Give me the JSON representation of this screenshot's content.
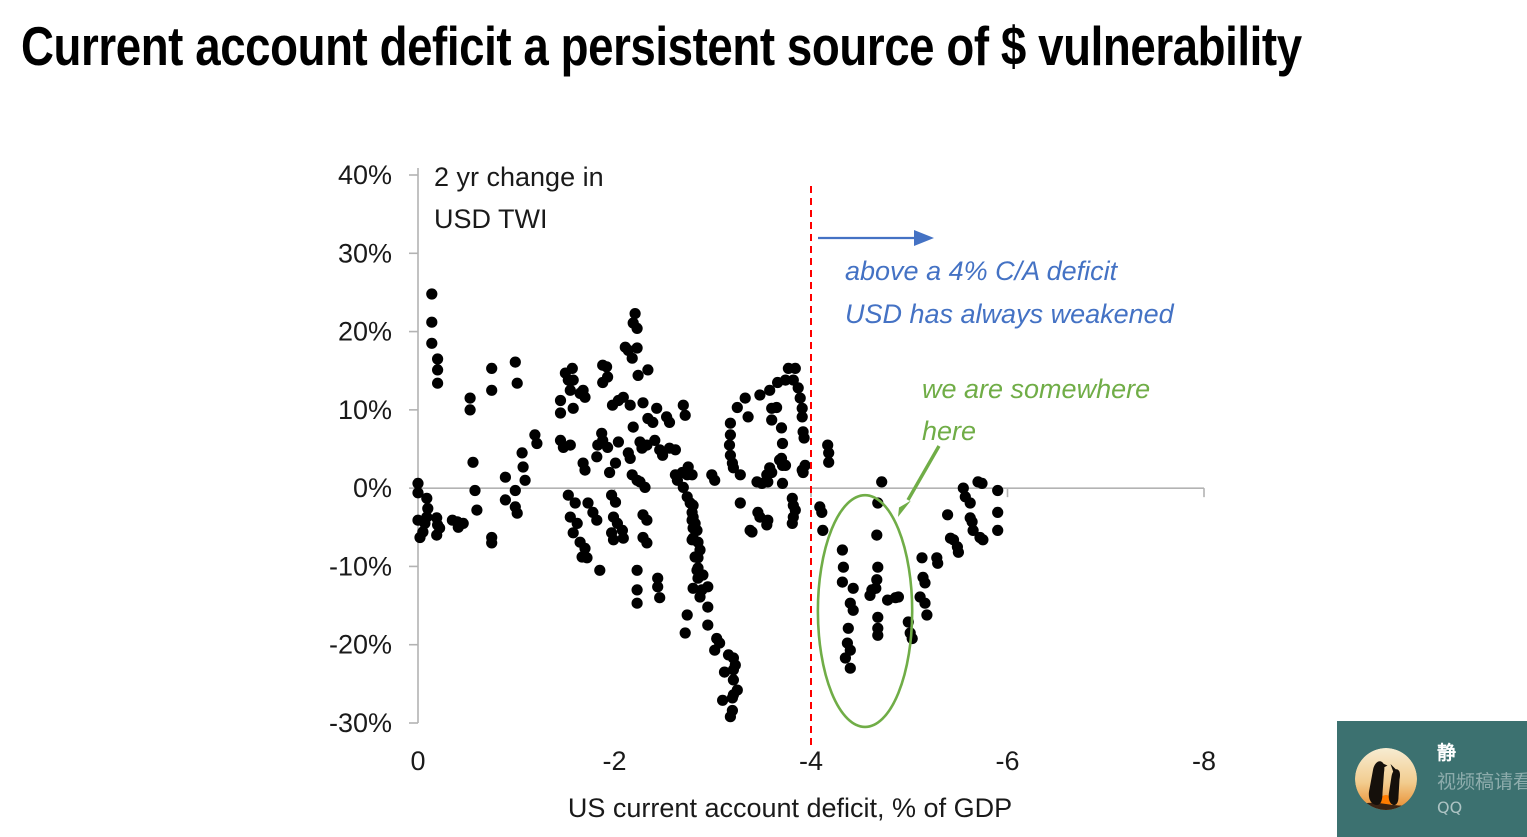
{
  "page_title": "Current account deficit a persistent source of $ vulnerability",
  "chart_data": {
    "type": "scatter",
    "xlabel": "US current account deficit, % of GDP",
    "ylabel": {
      "line1": "2 yr change in",
      "line2": "USD TWI"
    },
    "xlim": [
      0,
      -8
    ],
    "ylim": [
      -30,
      40
    ],
    "x_tick_labels": [
      "0",
      "-2",
      "-4",
      "-6",
      "-8"
    ],
    "x_tick_values": [
      0,
      -2,
      -4,
      -6,
      -8
    ],
    "y_tick_labels": [
      "40%",
      "30%",
      "20%",
      "10%",
      "0%",
      "-10%",
      "-20%",
      "-30%"
    ],
    "y_tick_values": [
      40,
      30,
      20,
      10,
      0,
      -10,
      -20,
      -30
    ],
    "grid": "zero-line-only",
    "legend": "none",
    "marker_color": "#000000",
    "axis_color": "#B3B3B3",
    "tick_label_color": "#1a1a1a",
    "reference_line": {
      "x": -4,
      "color": "#FF0000",
      "style": "dashed"
    },
    "annotations": {
      "blue": {
        "line1": "above a 4% C/A deficit",
        "line2": "USD has always weakened",
        "color": "#4472C4",
        "arrow": "right-from-reference-line"
      },
      "green": {
        "line1": "we are somewhere",
        "line2": "here",
        "color": "#70AD47",
        "arrow": "down-left-to-ellipse"
      }
    },
    "highlight_ellipse": {
      "cx": -4.55,
      "cy": -15.7,
      "rx": 0.48,
      "ry": 14.8,
      "color": "#70AD47"
    },
    "points": [
      [
        -0.14,
        24.8
      ],
      [
        -0.14,
        21.2
      ],
      [
        -0.14,
        18.5
      ],
      [
        -0.2,
        16.5
      ],
      [
        -0.2,
        15.1
      ],
      [
        -0.2,
        13.4
      ],
      [
        0,
        0.6
      ],
      [
        0,
        -0.6
      ],
      [
        -0.09,
        -1.3
      ],
      [
        -0.1,
        -2.6
      ],
      [
        -0.09,
        -3.7
      ],
      [
        -0.07,
        -4.5
      ],
      [
        0,
        -4.1
      ],
      [
        -0.05,
        -5.6
      ],
      [
        -0.02,
        -6.3
      ],
      [
        -0.19,
        -3.8
      ],
      [
        -0.2,
        -4.7
      ],
      [
        -0.22,
        -5.1
      ],
      [
        -0.19,
        -6
      ],
      [
        -0.35,
        -4.1
      ],
      [
        -0.4,
        -4.3
      ],
      [
        -0.41,
        -5
      ],
      [
        -0.46,
        -4.5
      ],
      [
        -0.53,
        11.5
      ],
      [
        -0.53,
        10
      ],
      [
        -0.56,
        3.3
      ],
      [
        -0.58,
        -0.3
      ],
      [
        -0.6,
        -2.8
      ],
      [
        -0.75,
        15.3
      ],
      [
        -0.75,
        12.5
      ],
      [
        -0.75,
        -6.3
      ],
      [
        -0.75,
        -7
      ],
      [
        -0.89,
        1.4
      ],
      [
        -0.89,
        -1.5
      ],
      [
        -0.99,
        16.1
      ],
      [
        -1.01,
        13.4
      ],
      [
        -0.99,
        -0.3
      ],
      [
        -0.99,
        -2.4
      ],
      [
        -1.01,
        -3.2
      ],
      [
        -1.06,
        4.5
      ],
      [
        -1.07,
        2.7
      ],
      [
        -1.09,
        1
      ],
      [
        -1.19,
        6.8
      ],
      [
        -1.21,
        5.7
      ],
      [
        -1.45,
        11.2
      ],
      [
        -1.45,
        9.6
      ],
      [
        -1.45,
        6.1
      ],
      [
        -1.48,
        5.2
      ],
      [
        -1.55,
        5.5
      ],
      [
        -1.68,
        3.2
      ],
      [
        -1.7,
        2.3
      ],
      [
        -1.82,
        4
      ],
      [
        -1.5,
        14.7
      ],
      [
        -1.53,
        13.8
      ],
      [
        -1.57,
        15.3
      ],
      [
        -1.58,
        13.8
      ],
      [
        -1.55,
        12.5
      ],
      [
        -1.65,
        12.1
      ],
      [
        -1.7,
        11.6
      ],
      [
        -1.58,
        10.2
      ],
      [
        -1.68,
        12.5
      ],
      [
        -1.53,
        -0.9
      ],
      [
        -1.6,
        -1.9
      ],
      [
        -1.55,
        -3.7
      ],
      [
        -1.62,
        -4.5
      ],
      [
        -1.58,
        -5.7
      ],
      [
        -1.65,
        -6.9
      ],
      [
        -1.7,
        -7.7
      ],
      [
        -1.67,
        -8.8
      ],
      [
        -1.72,
        -8.9
      ],
      [
        -1.73,
        -1.9
      ],
      [
        -1.78,
        -3.1
      ],
      [
        -1.82,
        -4.1
      ],
      [
        -1.85,
        -10.5
      ],
      [
        -1.92,
        15.5
      ],
      [
        -1.93,
        14.2
      ],
      [
        -1.88,
        13.5
      ],
      [
        -1.88,
        15.7
      ],
      [
        -2.21,
        22.3
      ],
      [
        -2.19,
        21.1
      ],
      [
        -2.23,
        20.4
      ],
      [
        -2.11,
        18
      ],
      [
        -2.14,
        17.6
      ],
      [
        -2.23,
        17.9
      ],
      [
        -2.18,
        16.6
      ],
      [
        -2.24,
        14.4
      ],
      [
        -2.34,
        15.1
      ],
      [
        -1.98,
        10.6
      ],
      [
        -2.04,
        11.2
      ],
      [
        -2.09,
        11.6
      ],
      [
        -2.16,
        10.6
      ],
      [
        -2.29,
        10.9
      ],
      [
        -2.43,
        10.2
      ],
      [
        -2.34,
        8.9
      ],
      [
        -2.39,
        8.4
      ],
      [
        -2.53,
        9.1
      ],
      [
        -2.56,
        8.4
      ],
      [
        -2.7,
        10.6
      ],
      [
        -2.72,
        9.3
      ],
      [
        -2.19,
        7.8
      ],
      [
        -1.87,
        7
      ],
      [
        -1.88,
        6.1
      ],
      [
        -1.83,
        5.5
      ],
      [
        -1.93,
        5.2
      ],
      [
        -2.04,
        5.9
      ],
      [
        -2.01,
        3.2
      ],
      [
        -1.95,
        2
      ],
      [
        -2.26,
        5.9
      ],
      [
        -2.28,
        5.1
      ],
      [
        -2.33,
        5.5
      ],
      [
        -2.41,
        6.1
      ],
      [
        -2.46,
        4.9
      ],
      [
        -2.49,
        4.2
      ],
      [
        -2.56,
        5.1
      ],
      [
        -2.62,
        4.9
      ],
      [
        -2.14,
        4.5
      ],
      [
        -2.16,
        3.8
      ],
      [
        -2.18,
        1.7
      ],
      [
        -2.23,
        1
      ],
      [
        -2.26,
        0.8
      ],
      [
        -2.31,
        0.1
      ],
      [
        -2.62,
        1.7
      ],
      [
        -2.64,
        1
      ],
      [
        -2.69,
        2
      ],
      [
        -2.74,
        1.7
      ],
      [
        -2.75,
        2.7
      ],
      [
        -2.79,
        1.7
      ],
      [
        -2.7,
        0.1
      ],
      [
        -2.74,
        -1.1
      ],
      [
        -2.77,
        -1.9
      ],
      [
        -2.79,
        -3.1
      ],
      [
        -2.8,
        -3.7
      ],
      [
        -2.82,
        -4.5
      ],
      [
        -2.84,
        -5.4
      ],
      [
        -2.8,
        -6.4
      ],
      [
        -2.85,
        -6.9
      ],
      [
        -2.87,
        -7.9
      ],
      [
        -2.82,
        -8.8
      ],
      [
        -1.97,
        -0.9
      ],
      [
        -2.01,
        -1.8
      ],
      [
        -1.99,
        -3.7
      ],
      [
        -2.03,
        -4.5
      ],
      [
        -1.97,
        -5.7
      ],
      [
        -1.99,
        -6.6
      ],
      [
        -2.08,
        -5.4
      ],
      [
        -2.09,
        -6.4
      ],
      [
        -2.29,
        -3.4
      ],
      [
        -2.33,
        -4.1
      ],
      [
        -2.29,
        -6.3
      ],
      [
        -2.33,
        -7
      ],
      [
        -2.8,
        -2.2
      ],
      [
        -2.79,
        -4.1
      ],
      [
        -2.8,
        -5.1
      ],
      [
        -2.79,
        -6.6
      ],
      [
        -2.23,
        -10.5
      ],
      [
        -2.23,
        -13
      ],
      [
        -2.23,
        -14.7
      ],
      [
        -2.44,
        -11.5
      ],
      [
        -2.44,
        -12.6
      ],
      [
        -2.46,
        -14
      ],
      [
        -2.85,
        -8.9
      ],
      [
        -2.84,
        -10.5
      ],
      [
        -2.85,
        -11.5
      ],
      [
        -2.8,
        -12.8
      ],
      [
        -2.89,
        -13
      ],
      [
        -2.95,
        -12.6
      ],
      [
        -2.87,
        -13.9
      ],
      [
        -2.95,
        -15.2
      ],
      [
        -2.74,
        -16.2
      ],
      [
        -2.95,
        -17.5
      ],
      [
        -2.72,
        -18.5
      ],
      [
        -3.04,
        -19.2
      ],
      [
        -3.07,
        -19.8
      ],
      [
        -3.02,
        -20.7
      ],
      [
        -3.16,
        -21.3
      ],
      [
        -3.21,
        -21.7
      ],
      [
        -3.23,
        -22.6
      ],
      [
        -3.21,
        -23.2
      ],
      [
        -3.12,
        -23.5
      ],
      [
        -3.21,
        -24.5
      ],
      [
        -3.25,
        -25.8
      ],
      [
        -3.21,
        -26.4
      ],
      [
        -3.1,
        -27.1
      ],
      [
        -3.2,
        -26.8
      ],
      [
        -3.2,
        -28.4
      ],
      [
        -3.18,
        -29.2
      ],
      [
        -2.85,
        -10.2
      ],
      [
        -2.9,
        -11.1
      ],
      [
        -3.77,
        15.3
      ],
      [
        -3.84,
        15.3
      ],
      [
        -3.66,
        13.5
      ],
      [
        -3.74,
        13.8
      ],
      [
        -3.82,
        13.8
      ],
      [
        -3.87,
        12.8
      ],
      [
        -3.48,
        11.9
      ],
      [
        -3.58,
        12.5
      ],
      [
        -3.65,
        10.3
      ],
      [
        -3.6,
        10.2
      ],
      [
        -3.25,
        10.3
      ],
      [
        -3.33,
        11.5
      ],
      [
        -3.36,
        9.1
      ],
      [
        -3.18,
        8.3
      ],
      [
        -3.18,
        6.8
      ],
      [
        -3.17,
        5.5
      ],
      [
        -3.18,
        4.2
      ],
      [
        -3.2,
        3.2
      ],
      [
        -3.21,
        2.6
      ],
      [
        -3.6,
        8.7
      ],
      [
        -3.7,
        7.7
      ],
      [
        -3.71,
        5.7
      ],
      [
        -3.7,
        3.8
      ],
      [
        -3.74,
        2.9
      ],
      [
        -3.89,
        11.5
      ],
      [
        -3.91,
        10.2
      ],
      [
        -3.91,
        9.1
      ],
      [
        -3.92,
        7.2
      ],
      [
        -3.93,
        6.4
      ],
      [
        -3.92,
        2
      ],
      [
        -3.28,
        1.7
      ],
      [
        -3.55,
        1.7
      ],
      [
        -3.6,
        2
      ],
      [
        -3.58,
        2.6
      ],
      [
        -3.68,
        3.6
      ],
      [
        -3.71,
        2.9
      ],
      [
        -3.02,
        1
      ],
      [
        -2.99,
        1.7
      ],
      [
        -3.45,
        0.8
      ],
      [
        -3.5,
        0.6
      ],
      [
        -3.56,
        0.8
      ],
      [
        -3.71,
        0.6
      ],
      [
        -3.91,
        2.3
      ],
      [
        -3.94,
        2.9
      ],
      [
        -3.28,
        -1.9
      ],
      [
        -3.46,
        -3.1
      ],
      [
        -3.48,
        -3.7
      ],
      [
        -3.56,
        -4.1
      ],
      [
        -3.55,
        -4.7
      ],
      [
        -3.38,
        -5.4
      ],
      [
        -3.4,
        -5.6
      ],
      [
        -3.81,
        -1.3
      ],
      [
        -3.82,
        -2.2
      ],
      [
        -3.84,
        -2.8
      ],
      [
        -3.82,
        -3.7
      ],
      [
        -3.81,
        -4.5
      ],
      [
        -4.17,
        5.5
      ],
      [
        -4.18,
        4.5
      ],
      [
        -4.18,
        3.3
      ],
      [
        -4.09,
        -2.4
      ],
      [
        -4.11,
        -3.1
      ],
      [
        -4.12,
        -5.4
      ],
      [
        -4.72,
        0.8
      ],
      [
        -4.68,
        -1.9
      ],
      [
        -4.32,
        -7.9
      ],
      [
        -4.33,
        -10.1
      ],
      [
        -4.32,
        -12
      ],
      [
        -4.43,
        -12.8
      ],
      [
        -4.4,
        -14.7
      ],
      [
        -4.43,
        -15.6
      ],
      [
        -4.38,
        -17.9
      ],
      [
        -4.37,
        -19.8
      ],
      [
        -4.4,
        -20.7
      ],
      [
        -4.35,
        -21.7
      ],
      [
        -4.4,
        -23
      ],
      [
        -4.67,
        -6
      ],
      [
        -4.68,
        -10.1
      ],
      [
        -4.67,
        -11.7
      ],
      [
        -4.62,
        -13
      ],
      [
        -4.66,
        -12.8
      ],
      [
        -4.6,
        -13.7
      ],
      [
        -4.78,
        -14.3
      ],
      [
        -4.86,
        -14
      ],
      [
        -4.89,
        -13.9
      ],
      [
        -4.68,
        -16.5
      ],
      [
        -4.68,
        -17.9
      ],
      [
        -4.68,
        -18.8
      ],
      [
        -4.99,
        -17.1
      ],
      [
        -5.01,
        -18.5
      ],
      [
        -5.03,
        -19.2
      ],
      [
        -5.13,
        -8.9
      ],
      [
        -5.14,
        -11.4
      ],
      [
        -5.16,
        -12.1
      ],
      [
        -5.11,
        -13.9
      ],
      [
        -5.16,
        -14.7
      ],
      [
        -5.18,
        -16.2
      ],
      [
        -5.28,
        -8.9
      ],
      [
        -5.29,
        -9.6
      ],
      [
        -5.39,
        -3.4
      ],
      [
        -5.42,
        -6.4
      ],
      [
        -5.45,
        -6.6
      ],
      [
        -5.49,
        -7.5
      ],
      [
        -5.5,
        -8.2
      ],
      [
        -5.55,
        0
      ],
      [
        -5.57,
        -1.1
      ],
      [
        -5.62,
        -1.9
      ],
      [
        -5.62,
        -3.8
      ],
      [
        -5.64,
        -4.3
      ],
      [
        -5.65,
        -5.4
      ],
      [
        -5.7,
        0.8
      ],
      [
        -5.74,
        0.6
      ],
      [
        -5.72,
        -6.3
      ],
      [
        -5.75,
        -6.6
      ],
      [
        -5.9,
        -0.3
      ],
      [
        -5.9,
        -3.1
      ],
      [
        -5.9,
        -5.4
      ]
    ]
  },
  "overlay_widget": {
    "name": "静",
    "subtitle": "视频稿请看",
    "service": "QQ",
    "bg_color": "#3C7170",
    "avatar": "two-penguins-sunset"
  }
}
